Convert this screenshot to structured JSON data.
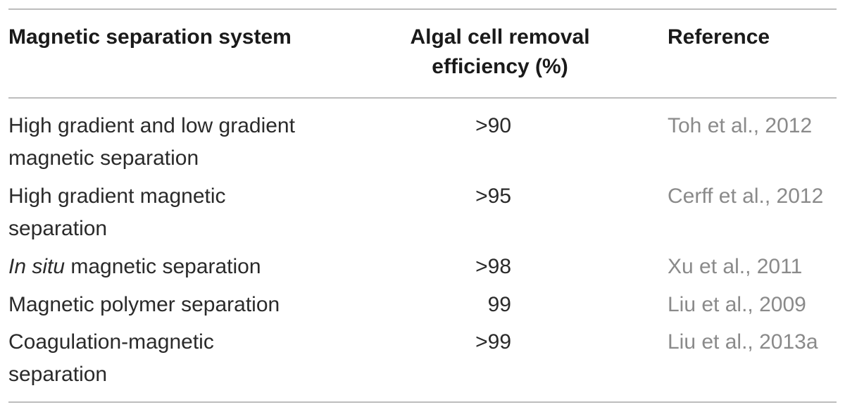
{
  "table": {
    "headers": {
      "system": "Magnetic separation system",
      "efficiency_line1": "Algal cell removal",
      "efficiency_line2": "efficiency (%)",
      "reference": "Reference"
    },
    "rows": [
      {
        "system_line1": "High gradient and low gradient",
        "system_line2": "magnetic separation",
        "efficiency": ">90",
        "reference": "Toh et al., 2012"
      },
      {
        "system_line1": "High gradient magnetic",
        "system_line2": "separation",
        "efficiency": ">95",
        "reference": "Cerff et al., 2012"
      },
      {
        "system_italic": "In situ",
        "system_rest": " magnetic separation",
        "efficiency": ">98",
        "reference": "Xu et al., 2011"
      },
      {
        "system_line1": "Magnetic polymer separation",
        "efficiency": "99",
        "reference": "Liu et al., 2009"
      },
      {
        "system_line1": "Coagulation-magnetic",
        "system_line2": "separation",
        "efficiency": ">99",
        "reference": "Liu et al., 2013a"
      }
    ]
  }
}
